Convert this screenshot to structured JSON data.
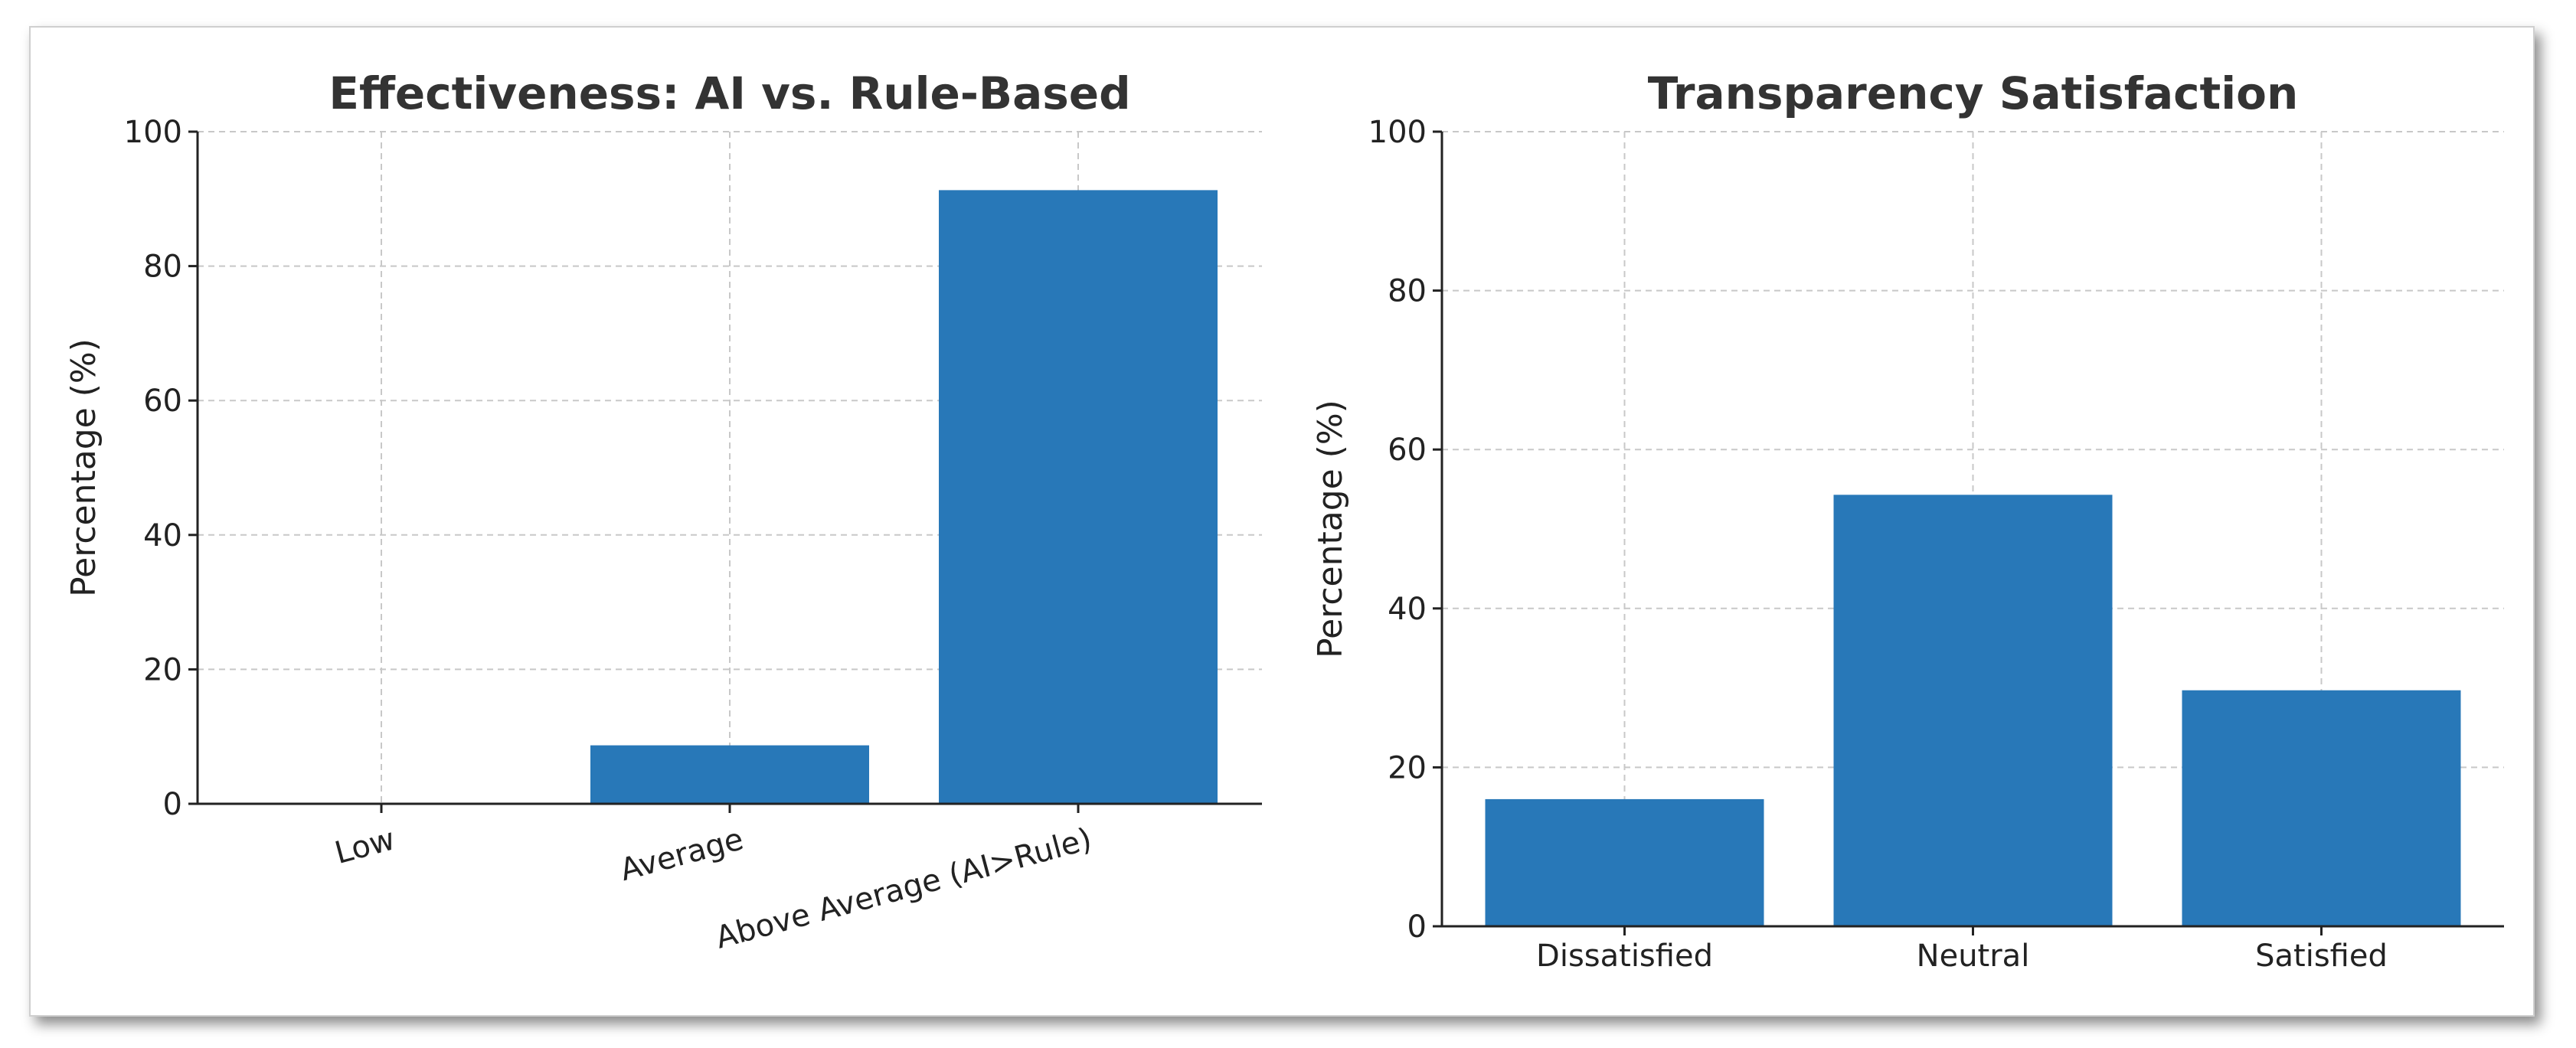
{
  "chart_data": [
    {
      "type": "bar",
      "title": "Effectiveness: AI vs. Rule-Based",
      "xlabel": "",
      "ylabel": "Percentage (%)",
      "categories": [
        "Low",
        "Average",
        "Above Average (AI>Rule)"
      ],
      "values": [
        0,
        8.7,
        91.3
      ],
      "ylim": [
        0,
        100
      ],
      "yticks": [
        0,
        20,
        40,
        60,
        80,
        100
      ],
      "grid": true,
      "bar_color": "#2878b8",
      "xtick_rotation": 15
    },
    {
      "type": "bar",
      "title": "Transparency Satisfaction",
      "xlabel": "",
      "ylabel": "Percentage (%)",
      "categories": [
        "Dissatisfied",
        "Neutral",
        "Satisfied"
      ],
      "values": [
        16,
        54.3,
        29.7
      ],
      "ylim": [
        0,
        100
      ],
      "yticks": [
        0,
        20,
        40,
        60,
        80,
        100
      ],
      "grid": true,
      "bar_color": "#2878b8",
      "xtick_rotation": 0
    }
  ]
}
